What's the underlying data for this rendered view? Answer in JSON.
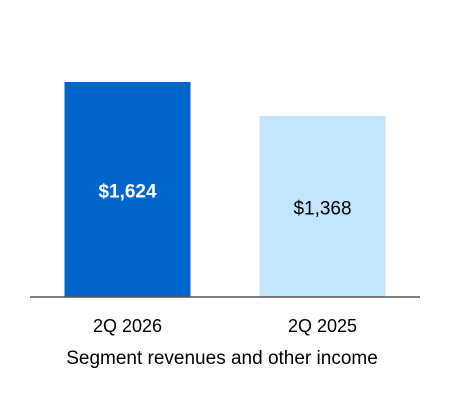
{
  "chart_data": {
    "type": "bar",
    "categories": [
      "2Q 2026",
      "2Q 2025"
    ],
    "values": [
      1624,
      1368
    ],
    "value_labels": [
      "$1,624",
      "$1,368"
    ],
    "colors": [
      "#0066cc",
      "#c2e4fc"
    ],
    "label_colors": [
      "#ffffff",
      "#000000"
    ],
    "xlabel": "Segment revenues and other income"
  }
}
